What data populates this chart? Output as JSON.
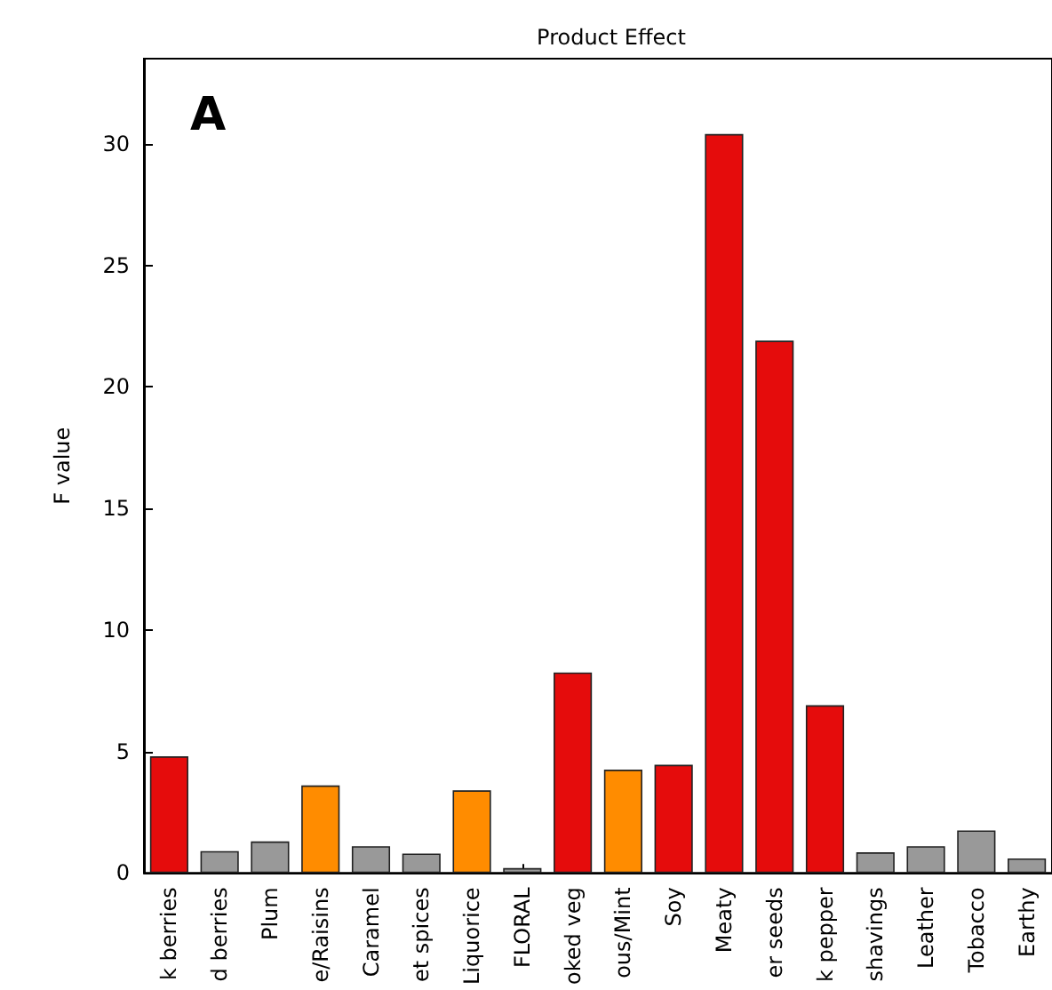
{
  "chart_data": {
    "type": "bar",
    "title": "Product Effect",
    "ylabel": "F value",
    "annotations": [
      "A"
    ],
    "categories": [
      "k berries",
      "d berries",
      "Plum",
      "e/Raisins",
      "Caramel",
      "et spices",
      "Liquorice",
      "FLORAL",
      "oked veg",
      "ous/Mint",
      "Soy",
      "Meaty",
      "er seeds",
      "k pepper",
      "shavings",
      "Leather",
      "Tobacco",
      "Earthy"
    ],
    "values": [
      4.8,
      0.9,
      1.3,
      3.6,
      1.1,
      0.8,
      3.4,
      0.2,
      8.25,
      4.25,
      4.45,
      30.4,
      21.9,
      6.9,
      0.85,
      1.1,
      1.75,
      0.6
    ],
    "colors": [
      "#e50c0c",
      "#999999",
      "#999999",
      "#ff8c00",
      "#999999",
      "#999999",
      "#ff8c00",
      "#999999",
      "#e50c0c",
      "#ff8c00",
      "#e50c0c",
      "#e50c0c",
      "#e50c0c",
      "#e50c0c",
      "#999999",
      "#999999",
      "#999999",
      "#999999"
    ],
    "ylim": [
      0,
      33.5
    ],
    "yticks": [
      0,
      5,
      10,
      15,
      20,
      25,
      30
    ],
    "grid": false
  }
}
